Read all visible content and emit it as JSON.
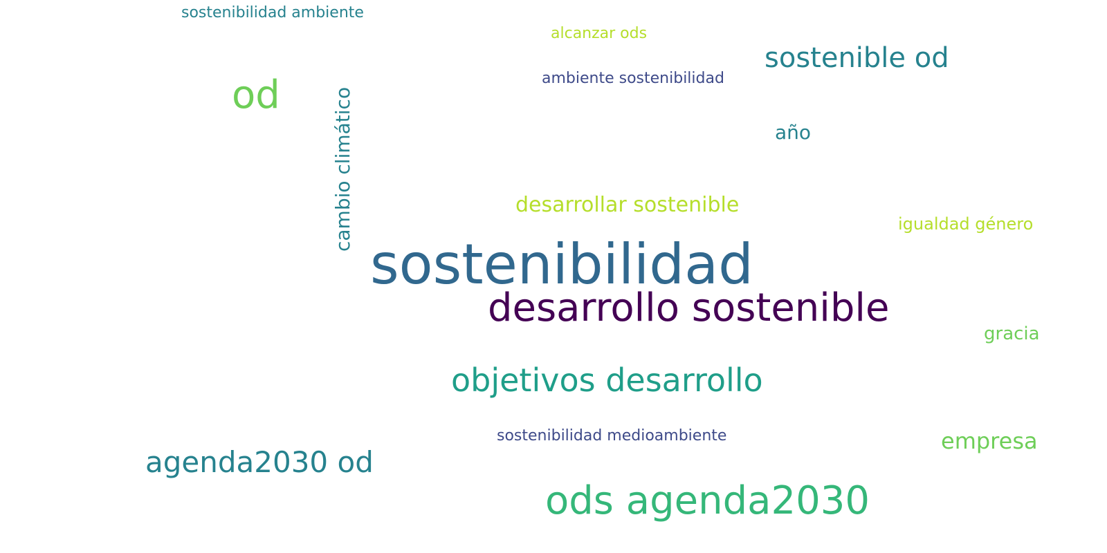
{
  "palette": {
    "dark_purple": "#440154",
    "indigo": "#3e4a89",
    "blue": "#31688e",
    "teal": "#26828e",
    "green": "#1f9e89",
    "emerald": "#35b779",
    "lime": "#6ece58",
    "yellow_green": "#b5de2b"
  },
  "words": [
    {
      "text": "sostenibilidad",
      "weight": 1.0
    },
    {
      "text": "desarrollo sostenible",
      "weight": 0.86
    },
    {
      "text": "objetivos desarrollo",
      "weight": 0.62
    },
    {
      "text": "ods agenda2030",
      "weight": 0.66
    },
    {
      "text": "agenda2030 od",
      "weight": 0.48
    },
    {
      "text": "od",
      "weight": 0.55
    },
    {
      "text": "sostenible od",
      "weight": 0.44
    },
    {
      "text": "cambio climático",
      "weight": 0.42
    },
    {
      "text": "desarrollar sostenible",
      "weight": 0.36
    },
    {
      "text": "empresa",
      "weight": 0.36
    },
    {
      "text": "año",
      "weight": 0.34
    },
    {
      "text": "igualdad género",
      "weight": 0.3
    },
    {
      "text": "gracia",
      "weight": 0.3
    },
    {
      "text": "ambiente sostenibilidad",
      "weight": 0.28
    },
    {
      "text": "sostenibilidad medioambiente",
      "weight": 0.27
    },
    {
      "text": "alcanzar ods",
      "weight": 0.26
    },
    {
      "text": "sostenibilidad ambiente",
      "weight": 0.25
    }
  ]
}
